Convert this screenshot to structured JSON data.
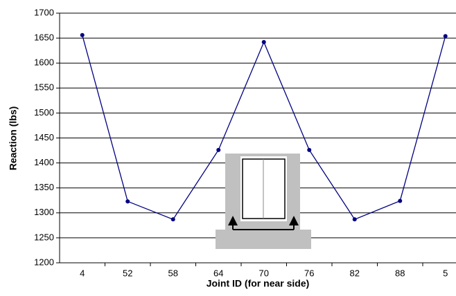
{
  "chart_data": {
    "type": "line",
    "x_label": "Joint ID (for near side)",
    "y_label": "Reaction (lbs)",
    "categories": [
      "4",
      "52",
      "58",
      "64",
      "70",
      "76",
      "82",
      "88",
      "5"
    ],
    "series": [
      {
        "color": "#000080",
        "values": [
          1656,
          1323,
          1287,
          1426,
          1642,
          1426,
          1287,
          1324,
          1654
        ]
      }
    ],
    "ylim": [
      1200,
      1700
    ],
    "yticks": [
      1200,
      1250,
      1300,
      1350,
      1400,
      1450,
      1500,
      1550,
      1600,
      1650,
      1700
    ],
    "grid": true
  }
}
